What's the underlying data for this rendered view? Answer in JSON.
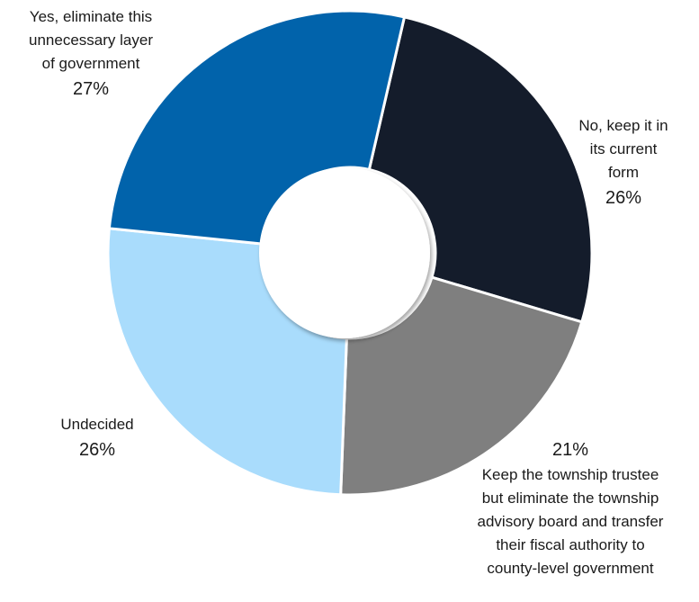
{
  "chart_data": {
    "type": "pie",
    "variant": "donut",
    "start_angle_deg": 13,
    "direction": "clockwise",
    "slices": [
      {
        "label": "No, keep it in\nits current\nform",
        "value": 26,
        "display": "26%",
        "color": "#141c2b"
      },
      {
        "label": "Keep the township trustee\nbut eliminate the township\nadvisory board and transfer\ntheir fiscal authority to\ncounty-level government",
        "value": 21,
        "display": "21%",
        "color": "#7f7f7f"
      },
      {
        "label": "Undecided",
        "value": 26,
        "display": "26%",
        "color": "#a9dcfc"
      },
      {
        "label": "Yes, eliminate this\nunnecessary layer\nof government",
        "value": 27,
        "display": "27%",
        "color": "#0163ab"
      }
    ]
  }
}
